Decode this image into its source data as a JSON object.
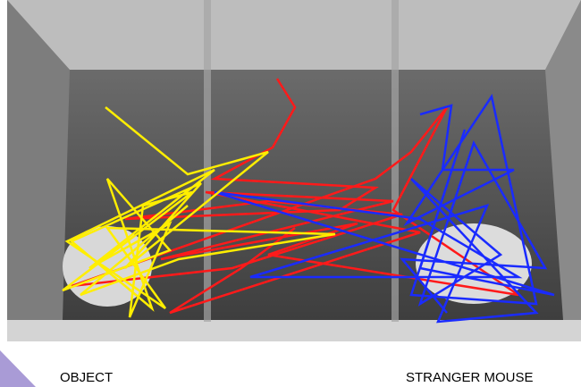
{
  "labels": {
    "object": "OBJECT",
    "stranger": "STRANGER MOUSE"
  }
}
